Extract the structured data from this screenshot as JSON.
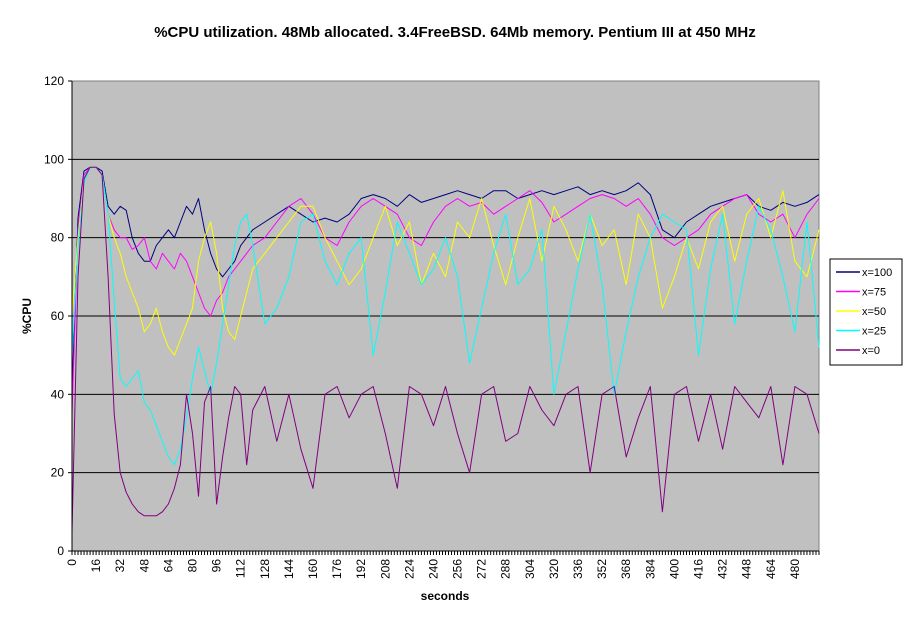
{
  "chart_data": {
    "type": "line",
    "title": "%CPU utilization. 48Mb allocated. 3.4FreeBSD. 64Mb memory. Pentium III at 450 MHz",
    "xlabel": "seconds",
    "ylabel": "%CPU",
    "xlim": [
      0,
      496
    ],
    "ylim": [
      0,
      120
    ],
    "y_ticks": [
      "0",
      "20",
      "40",
      "60",
      "80",
      "100",
      "120"
    ],
    "x_tick_labels": [
      "0",
      "16",
      "32",
      "48",
      "64",
      "80",
      "96",
      "112",
      "128",
      "144",
      "160",
      "176",
      "192",
      "208",
      "224",
      "240",
      "256",
      "272",
      "288",
      "304",
      "320",
      "336",
      "352",
      "368",
      "384",
      "400",
      "416",
      "432",
      "448",
      "464",
      "480"
    ],
    "grid": "horizontal",
    "plot_background": "#c0c0c0",
    "legend_position": "right",
    "series": [
      {
        "name": "x=100",
        "color": "#000080",
        "x": [
          0,
          4,
          8,
          12,
          16,
          20,
          24,
          28,
          32,
          36,
          40,
          44,
          48,
          52,
          56,
          60,
          64,
          68,
          72,
          76,
          80,
          84,
          88,
          92,
          96,
          100,
          104,
          108,
          112,
          116,
          120,
          128,
          136,
          144,
          152,
          160,
          168,
          176,
          184,
          192,
          200,
          208,
          216,
          224,
          232,
          240,
          248,
          256,
          264,
          272,
          280,
          288,
          296,
          304,
          312,
          320,
          328,
          336,
          344,
          352,
          360,
          368,
          376,
          384,
          392,
          400,
          408,
          416,
          424,
          432,
          440,
          448,
          456,
          464,
          472,
          480,
          488,
          496
        ],
        "y": [
          40,
          85,
          97,
          98,
          98,
          97,
          88,
          86,
          88,
          87,
          80,
          76,
          74,
          74,
          78,
          80,
          82,
          80,
          84,
          88,
          86,
          90,
          82,
          76,
          72,
          70,
          72,
          74,
          78,
          80,
          82,
          84,
          86,
          88,
          86,
          84,
          85,
          84,
          86,
          90,
          91,
          90,
          88,
          91,
          89,
          90,
          91,
          92,
          91,
          90,
          92,
          92,
          90,
          91,
          92,
          91,
          92,
          93,
          91,
          92,
          91,
          92,
          94,
          91,
          82,
          80,
          84,
          86,
          88,
          89,
          90,
          91,
          88,
          87,
          89,
          88,
          89,
          91
        ]
      },
      {
        "name": "x=75",
        "color": "#ff00ff",
        "x": [
          0,
          4,
          8,
          12,
          16,
          20,
          24,
          28,
          32,
          36,
          40,
          44,
          48,
          52,
          56,
          60,
          64,
          68,
          72,
          76,
          80,
          84,
          88,
          92,
          96,
          100,
          104,
          108,
          112,
          116,
          120,
          128,
          136,
          144,
          152,
          160,
          168,
          176,
          184,
          192,
          200,
          208,
          216,
          224,
          232,
          240,
          248,
          256,
          264,
          272,
          280,
          288,
          296,
          304,
          312,
          320,
          328,
          336,
          344,
          352,
          360,
          368,
          376,
          384,
          392,
          400,
          408,
          416,
          424,
          432,
          440,
          448,
          456,
          464,
          472,
          480,
          488,
          496
        ],
        "y": [
          35,
          82,
          96,
          98,
          98,
          96,
          86,
          82,
          80,
          80,
          77,
          78,
          80,
          74,
          72,
          76,
          74,
          72,
          76,
          74,
          70,
          66,
          62,
          60,
          64,
          66,
          70,
          72,
          74,
          76,
          78,
          80,
          84,
          88,
          90,
          86,
          80,
          78,
          84,
          88,
          90,
          88,
          86,
          80,
          78,
          84,
          88,
          90,
          88,
          89,
          86,
          88,
          90,
          92,
          89,
          84,
          86,
          88,
          90,
          91,
          90,
          88,
          90,
          86,
          80,
          78,
          80,
          82,
          86,
          88,
          90,
          91,
          86,
          84,
          86,
          80,
          86,
          90
        ]
      },
      {
        "name": "x=50",
        "color": "#ffff00",
        "x": [
          0,
          4,
          8,
          12,
          16,
          20,
          24,
          28,
          32,
          36,
          40,
          44,
          48,
          52,
          56,
          60,
          64,
          68,
          72,
          76,
          80,
          84,
          88,
          92,
          96,
          100,
          104,
          108,
          112,
          116,
          120,
          128,
          136,
          144,
          152,
          160,
          168,
          176,
          184,
          192,
          200,
          208,
          216,
          224,
          232,
          240,
          248,
          256,
          264,
          272,
          280,
          288,
          296,
          304,
          312,
          320,
          328,
          336,
          344,
          352,
          360,
          368,
          376,
          384,
          392,
          400,
          408,
          416,
          424,
          432,
          440,
          448,
          456,
          464,
          472,
          480,
          488,
          496
        ],
        "y": [
          60,
          80,
          95,
          98,
          98,
          96,
          86,
          80,
          76,
          70,
          66,
          62,
          56,
          58,
          62,
          56,
          52,
          50,
          54,
          58,
          62,
          74,
          80,
          84,
          76,
          62,
          56,
          54,
          60,
          66,
          72,
          76,
          80,
          84,
          88,
          88,
          80,
          74,
          68,
          72,
          80,
          88,
          78,
          84,
          68,
          76,
          70,
          84,
          80,
          90,
          78,
          68,
          80,
          90,
          74,
          88,
          82,
          74,
          86,
          78,
          82,
          68,
          86,
          80,
          62,
          70,
          80,
          72,
          84,
          88,
          74,
          86,
          90,
          80,
          92,
          74,
          70,
          82
        ]
      },
      {
        "name": "x=25",
        "color": "#00ffff",
        "x": [
          0,
          4,
          8,
          12,
          16,
          20,
          24,
          28,
          32,
          36,
          40,
          44,
          48,
          52,
          56,
          60,
          64,
          68,
          72,
          76,
          80,
          84,
          88,
          92,
          96,
          100,
          104,
          108,
          112,
          116,
          120,
          128,
          136,
          144,
          152,
          160,
          168,
          176,
          184,
          192,
          200,
          208,
          216,
          224,
          232,
          240,
          248,
          256,
          264,
          272,
          280,
          288,
          296,
          304,
          312,
          320,
          328,
          336,
          344,
          352,
          360,
          368,
          376,
          384,
          392,
          400,
          408,
          416,
          424,
          432,
          440,
          448,
          456,
          464,
          472,
          480,
          488,
          496
        ],
        "y": [
          50,
          78,
          94,
          98,
          98,
          96,
          86,
          64,
          44,
          42,
          44,
          46,
          38,
          36,
          32,
          28,
          24,
          22,
          26,
          34,
          44,
          52,
          46,
          40,
          48,
          58,
          68,
          78,
          84,
          86,
          78,
          58,
          62,
          70,
          84,
          86,
          74,
          68,
          76,
          80,
          50,
          66,
          84,
          76,
          68,
          72,
          80,
          70,
          48,
          62,
          76,
          86,
          68,
          72,
          82,
          40,
          56,
          72,
          86,
          68,
          40,
          56,
          70,
          80,
          86,
          84,
          82,
          50,
          72,
          86,
          58,
          74,
          88,
          82,
          70,
          56,
          84,
          52
        ]
      },
      {
        "name": "x=0",
        "color": "#800080",
        "x": [
          0,
          4,
          8,
          12,
          16,
          20,
          24,
          28,
          32,
          36,
          40,
          44,
          48,
          52,
          56,
          60,
          64,
          68,
          72,
          76,
          80,
          84,
          88,
          92,
          96,
          100,
          104,
          108,
          112,
          116,
          120,
          128,
          136,
          144,
          152,
          160,
          168,
          176,
          184,
          192,
          200,
          208,
          216,
          224,
          232,
          240,
          248,
          256,
          264,
          272,
          280,
          288,
          296,
          304,
          312,
          320,
          328,
          336,
          344,
          352,
          360,
          368,
          376,
          384,
          392,
          400,
          408,
          416,
          424,
          432,
          440,
          448,
          456,
          464,
          472,
          480,
          488,
          496
        ],
        "y": [
          5,
          70,
          95,
          98,
          98,
          96,
          70,
          35,
          20,
          15,
          12,
          10,
          9,
          9,
          9,
          10,
          12,
          16,
          22,
          40,
          30,
          14,
          38,
          42,
          12,
          24,
          34,
          42,
          40,
          22,
          36,
          42,
          28,
          40,
          26,
          16,
          40,
          42,
          34,
          40,
          42,
          30,
          16,
          42,
          40,
          32,
          42,
          30,
          20,
          40,
          42,
          28,
          30,
          42,
          36,
          32,
          40,
          42,
          20,
          40,
          42,
          24,
          34,
          42,
          10,
          40,
          42,
          28,
          40,
          26,
          42,
          38,
          34,
          42,
          22,
          42,
          40,
          30
        ]
      }
    ]
  }
}
